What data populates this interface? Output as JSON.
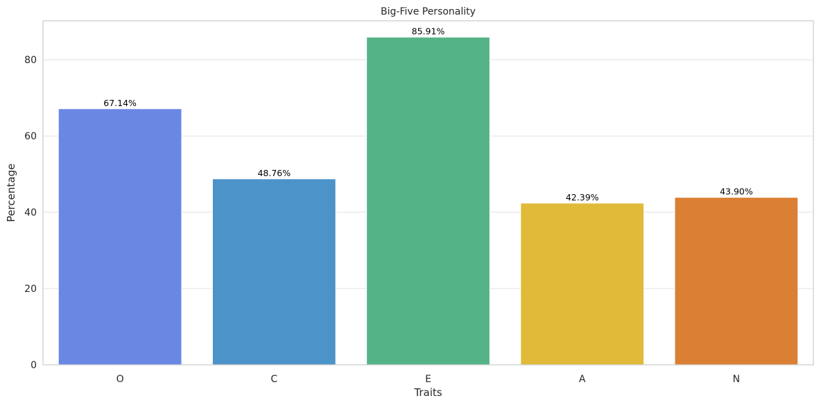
{
  "chart_data": {
    "type": "bar",
    "title": "Big-Five Personality",
    "xlabel": "Traits",
    "ylabel": "Percentage",
    "categories": [
      "O",
      "C",
      "E",
      "A",
      "N"
    ],
    "values": [
      67.14,
      48.76,
      85.91,
      42.39,
      43.9
    ],
    "data_labels": [
      "67.14%",
      "48.76%",
      "85.91%",
      "42.39%",
      "43.90%"
    ],
    "colors": [
      "#6a88e3",
      "#4c93c9",
      "#54b488",
      "#e0ba38",
      "#db7f35"
    ],
    "ylim": [
      0,
      90.2
    ],
    "yticks": [
      0,
      20,
      40,
      60,
      80
    ],
    "grid": "horizontal",
    "legend": "none"
  }
}
